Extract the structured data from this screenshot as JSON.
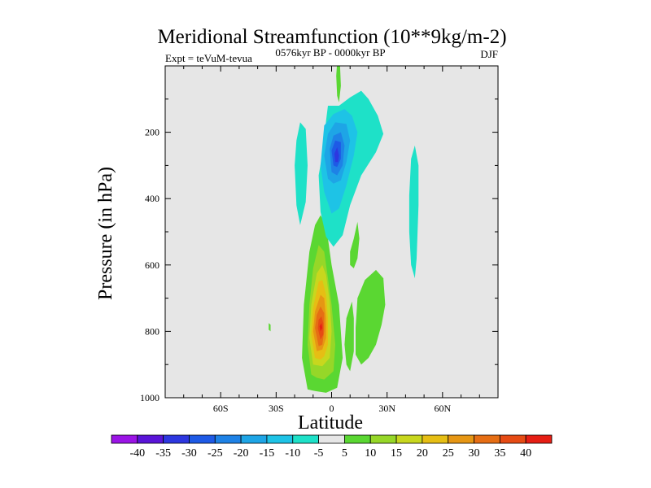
{
  "chart_data": {
    "type": "heatmap",
    "title": "Meridional Streamfunction (10**9kg/m-2)",
    "left_label": "Expt = teVuM-tevua",
    "center_label": "0576kyr BP - 0000kyr BP",
    "right_label": "DJF",
    "xlabel": "Latitude",
    "ylabel": "Pressure (in hPa)",
    "xlim": [
      -90,
      90
    ],
    "ylim": [
      1000,
      0
    ],
    "x_ticks": [
      {
        "value": -60,
        "label": "60S"
      },
      {
        "value": -30,
        "label": "30S"
      },
      {
        "value": 0,
        "label": "0"
      },
      {
        "value": 30,
        "label": "30N"
      },
      {
        "value": 60,
        "label": "60N"
      }
    ],
    "y_ticks": [
      {
        "value": 200,
        "label": "200"
      },
      {
        "value": 400,
        "label": "400"
      },
      {
        "value": 600,
        "label": "600"
      },
      {
        "value": 800,
        "label": "800"
      },
      {
        "value": 1000,
        "label": "1000"
      }
    ],
    "plot_background": "#e6e6e6",
    "colorbar": {
      "levels": [
        "-40",
        "-35",
        "-30",
        "-25",
        "-20",
        "-15",
        "-10",
        "-5",
        "5",
        "10",
        "15",
        "20",
        "25",
        "30",
        "35",
        "40"
      ],
      "colors": [
        "#9b14e6",
        "#5a14d8",
        "#2d37e0",
        "#1e5ae6",
        "#1e82e6",
        "#1ea5e6",
        "#1ec3e6",
        "#1ee1c8",
        "#e6e6e6",
        "#5ad732",
        "#96d728",
        "#c8d71e",
        "#e6be14",
        "#e69614",
        "#e66e14",
        "#e64b14",
        "#e61e14"
      ]
    },
    "features": [
      {
        "name": "southern-hadley-cell",
        "sign": "positive",
        "contours": [
          {
            "level": 5,
            "color": "#5ad732",
            "points": [
              [
                -13,
                975
              ],
              [
                -16,
                880
              ],
              [
                -15,
                720
              ],
              [
                -12,
                560
              ],
              [
                -9,
                480
              ],
              [
                -6,
                450
              ],
              [
                -3,
                480
              ],
              [
                0,
                600
              ],
              [
                4,
                720
              ],
              [
                6,
                880
              ],
              [
                3,
                970
              ],
              [
                -3,
                985
              ],
              [
                -9,
                980
              ]
            ]
          },
          {
            "level": 10,
            "color": "#96d728",
            "points": [
              [
                -11,
                930
              ],
              [
                -13,
                840
              ],
              [
                -12,
                720
              ],
              [
                -10,
                610
              ],
              [
                -7,
                540
              ],
              [
                -4,
                560
              ],
              [
                -2,
                640
              ],
              [
                0,
                720
              ],
              [
                2,
                840
              ],
              [
                1,
                920
              ],
              [
                -4,
                945
              ],
              [
                -8,
                940
              ]
            ]
          },
          {
            "level": 15,
            "color": "#c8d71e",
            "points": [
              [
                -10,
                900
              ],
              [
                -12,
                820
              ],
              [
                -11,
                720
              ],
              [
                -8,
                625
              ],
              [
                -5,
                600
              ],
              [
                -3,
                630
              ],
              [
                -1,
                710
              ],
              [
                0,
                800
              ],
              [
                -1,
                880
              ],
              [
                -5,
                905
              ]
            ]
          },
          {
            "level": 20,
            "color": "#e6be14",
            "points": [
              [
                -9,
                880
              ],
              [
                -11,
                810
              ],
              [
                -10,
                730
              ],
              [
                -7,
                650
              ],
              [
                -5,
                645
              ],
              [
                -3,
                690
              ],
              [
                -2,
                760
              ],
              [
                -2,
                840
              ],
              [
                -4,
                875
              ],
              [
                -6,
                885
              ]
            ]
          },
          {
            "level": 25,
            "color": "#e69614",
            "points": [
              [
                -8,
                860
              ],
              [
                -10,
                800
              ],
              [
                -9,
                740
              ],
              [
                -6,
                690
              ],
              [
                -4,
                700
              ],
              [
                -3,
                760
              ],
              [
                -3,
                820
              ],
              [
                -5,
                855
              ]
            ]
          },
          {
            "level": 30,
            "color": "#e66e14",
            "points": [
              [
                -7,
                845
              ],
              [
                -9,
                790
              ],
              [
                -8,
                750
              ],
              [
                -6,
                725
              ],
              [
                -4,
                745
              ],
              [
                -4,
                800
              ],
              [
                -5,
                840
              ]
            ]
          },
          {
            "level": 35,
            "color": "#e64b14",
            "points": [
              [
                -6,
                825
              ],
              [
                -7.5,
                790
              ],
              [
                -7,
                765
              ],
              [
                -5.5,
                755
              ],
              [
                -4.5,
                775
              ],
              [
                -4.5,
                810
              ]
            ]
          },
          {
            "level": 40,
            "color": "#e61e14",
            "points": [
              [
                -6,
                800
              ],
              [
                -6.5,
                785
              ],
              [
                -5.5,
                775
              ],
              [
                -5,
                790
              ]
            ]
          }
        ]
      },
      {
        "name": "northern-hadley-cell",
        "sign": "negative",
        "contours": [
          {
            "level": -5,
            "color": "#1ee1c8",
            "points": [
              [
                -3,
                515
              ],
              [
                -6,
                440
              ],
              [
                -7,
                330
              ],
              [
                -4,
                235
              ],
              [
                -3,
                165
              ],
              [
                -2,
                120
              ],
              [
                4,
                120
              ],
              [
                10,
                95
              ],
              [
                16,
                75
              ],
              [
                20,
                100
              ],
              [
                25,
                150
              ],
              [
                28,
                205
              ],
              [
                24,
                260
              ],
              [
                16,
                330
              ],
              [
                10,
                420
              ],
              [
                6,
                510
              ],
              [
                1,
                545
              ]
            ]
          },
          {
            "level": -10,
            "color": "#1ec3e6",
            "points": [
              [
                -4,
                380
              ],
              [
                -6,
                300
              ],
              [
                -4,
                180
              ],
              [
                1,
                145
              ],
              [
                7,
                130
              ],
              [
                11,
                150
              ],
              [
                14,
                200
              ],
              [
                12,
                270
              ],
              [
                8,
                360
              ],
              [
                4,
                430
              ],
              [
                0,
                445
              ]
            ]
          },
          {
            "level": -15,
            "color": "#1ea5e6",
            "points": [
              [
                -2,
                340
              ],
              [
                -4,
                270
              ],
              [
                -2,
                205
              ],
              [
                2,
                170
              ],
              [
                8,
                175
              ],
              [
                10,
                225
              ],
              [
                8,
                290
              ],
              [
                5,
                345
              ],
              [
                1,
                355
              ]
            ]
          },
          {
            "level": -20,
            "color": "#1e82e6",
            "points": [
              [
                0,
                320
              ],
              [
                -1,
                250
              ],
              [
                1,
                210
              ],
              [
                5,
                200
              ],
              [
                7,
                240
              ],
              [
                6,
                300
              ],
              [
                3,
                330
              ]
            ]
          },
          {
            "level": -25,
            "color": "#1e5ae6",
            "points": [
              [
                1,
                300
              ],
              [
                0,
                255
              ],
              [
                2,
                225
              ],
              [
                5,
                230
              ],
              [
                5,
                280
              ],
              [
                3,
                305
              ]
            ]
          },
          {
            "level": -30,
            "color": "#2d37e0",
            "points": [
              [
                2,
                290
              ],
              [
                1.5,
                265
              ],
              [
                3,
                245
              ],
              [
                4,
                270
              ],
              [
                3.5,
                290
              ]
            ]
          }
        ]
      },
      {
        "name": "upper-tropical-strip",
        "sign": "positive",
        "contours": [
          {
            "level": 5,
            "color": "#5ad732",
            "points": [
              [
                3,
                -10
              ],
              [
                4.5,
                -10
              ],
              [
                5,
                60
              ],
              [
                4,
                110
              ],
              [
                3,
                90
              ],
              [
                2.5,
                30
              ]
            ]
          }
        ]
      },
      {
        "name": "southern-midlatitude-cell",
        "sign": "negative",
        "contours": [
          {
            "level": -5,
            "color": "#1ee1c8",
            "points": [
              [
                -19,
                225
              ],
              [
                -17,
                170
              ],
              [
                -14,
                190
              ],
              [
                -13,
                300
              ],
              [
                -14,
                410
              ],
              [
                -17,
                480
              ],
              [
                -19,
                420
              ],
              [
                -20,
                300
              ]
            ]
          }
        ]
      },
      {
        "name": "northern-midlatitude-cell",
        "sign": "negative",
        "contours": [
          {
            "level": -5,
            "color": "#1ee1c8",
            "points": [
              [
                42,
                390
              ],
              [
                43,
                280
              ],
              [
                45,
                240
              ],
              [
                47,
                300
              ],
              [
                47,
                420
              ],
              [
                46,
                580
              ],
              [
                45,
                640
              ],
              [
                43,
                600
              ],
              [
                42,
                500
              ]
            ]
          }
        ]
      },
      {
        "name": "northern-ferrel-cell",
        "sign": "positive",
        "contours": [
          {
            "level": 5,
            "color": "#5ad732",
            "points": [
              [
                13,
                790
              ],
              [
                14,
                700
              ],
              [
                18,
                645
              ],
              [
                24,
                615
              ],
              [
                28,
                640
              ],
              [
                29,
                720
              ],
              [
                27,
                780
              ],
              [
                24,
                840
              ],
              [
                20,
                880
              ],
              [
                16,
                900
              ],
              [
                13,
                870
              ]
            ]
          },
          {
            "level": 5,
            "color": "#5ad732",
            "points": [
              [
                10,
                560
              ],
              [
                12,
                520
              ],
              [
                14,
                470
              ],
              [
                15,
                520
              ],
              [
                14,
                580
              ],
              [
                12,
                610
              ],
              [
                10,
                600
              ]
            ]
          }
        ]
      },
      {
        "name": "equatorial-lower-patch",
        "sign": "positive",
        "contours": [
          {
            "level": 5,
            "color": "#5ad732",
            "points": [
              [
                7,
                840
              ],
              [
                8,
                760
              ],
              [
                11,
                710
              ],
              [
                12,
                760
              ],
              [
                12,
                860
              ],
              [
                10,
                920
              ],
              [
                8,
                900
              ]
            ]
          }
        ]
      },
      {
        "name": "southern-surface-speck",
        "sign": "positive",
        "contours": [
          {
            "level": 5,
            "color": "#5ad732",
            "points": [
              [
                -34,
                775
              ],
              [
                -34,
                795
              ],
              [
                -33,
                800
              ],
              [
                -33,
                780
              ]
            ]
          }
        ]
      }
    ]
  }
}
